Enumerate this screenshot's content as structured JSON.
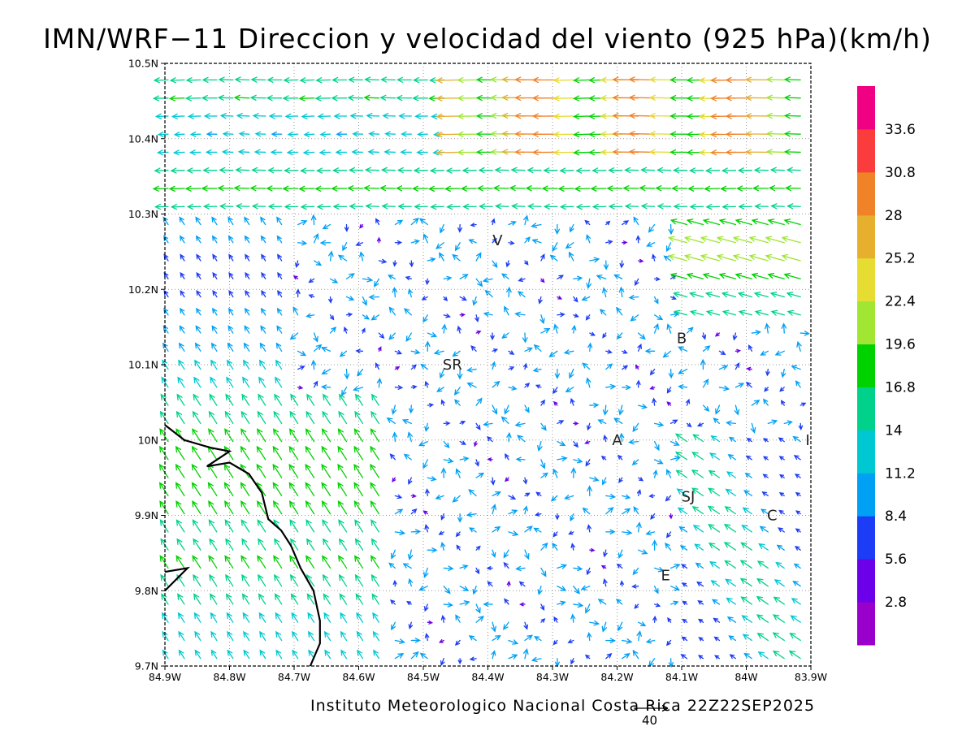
{
  "title": "IMN/WRF−11 Direccion y velocidad del viento (925 hPa)(km/h)",
  "footer": "Instituto Meteorologico Nacional Costa Rica 22Z22SEP2025",
  "reference_vector": {
    "value": 40,
    "label": "40"
  },
  "map": {
    "lon_range": [
      -84.9,
      -83.9
    ],
    "lat_range": [
      9.7,
      10.5
    ],
    "grid": "dotted",
    "x_ticks": [
      {
        "lon": -84.9,
        "label": "84.9W"
      },
      {
        "lon": -84.8,
        "label": "84.8W"
      },
      {
        "lon": -84.7,
        "label": "84.7W"
      },
      {
        "lon": -84.6,
        "label": "84.6W"
      },
      {
        "lon": -84.5,
        "label": "84.5W"
      },
      {
        "lon": -84.4,
        "label": "84.4W"
      },
      {
        "lon": -84.3,
        "label": "84.3W"
      },
      {
        "lon": -84.2,
        "label": "84.2W"
      },
      {
        "lon": -84.1,
        "label": "84.1W"
      },
      {
        "lon": -84.0,
        "label": "84W"
      },
      {
        "lon": -83.9,
        "label": "83.9W"
      }
    ],
    "y_ticks": [
      {
        "lat": 10.5,
        "label": "10.5N"
      },
      {
        "lat": 10.4,
        "label": "10.4N"
      },
      {
        "lat": 10.3,
        "label": "10.3N"
      },
      {
        "lat": 10.2,
        "label": "10.2N"
      },
      {
        "lat": 10.1,
        "label": "10.1N"
      },
      {
        "lat": 10.0,
        "label": "10N"
      },
      {
        "lat": 9.9,
        "label": "9.9N"
      },
      {
        "lat": 9.8,
        "label": "9.8N"
      },
      {
        "lat": 9.7,
        "label": "9.7N"
      }
    ],
    "places": [
      {
        "label": "V",
        "lon": -84.385,
        "lat": 10.265
      },
      {
        "label": "SR",
        "lon": -84.455,
        "lat": 10.1
      },
      {
        "label": "B",
        "lon": -84.1,
        "lat": 10.135
      },
      {
        "label": "A",
        "lon": -84.2,
        "lat": 10.0
      },
      {
        "label": "SJ",
        "lon": -84.09,
        "lat": 9.925
      },
      {
        "label": "C",
        "lon": -83.96,
        "lat": 9.9
      },
      {
        "label": "E",
        "lon": -84.125,
        "lat": 9.82
      },
      {
        "label": "I",
        "lon": -83.905,
        "lat": 10.0
      }
    ],
    "coastline": [
      [
        -84.9,
        10.02
      ],
      [
        -84.87,
        10.0
      ],
      [
        -84.83,
        9.99
      ],
      [
        -84.8,
        9.985
      ],
      [
        -84.835,
        9.965
      ],
      [
        -84.8,
        9.97
      ],
      [
        -84.77,
        9.955
      ],
      [
        -84.75,
        9.93
      ],
      [
        -84.74,
        9.895
      ],
      [
        -84.72,
        9.88
      ],
      [
        -84.705,
        9.86
      ],
      [
        -84.69,
        9.83
      ],
      [
        -84.67,
        9.8
      ],
      [
        -84.66,
        9.76
      ],
      [
        -84.66,
        9.73
      ],
      [
        -84.675,
        9.7
      ]
    ],
    "peninsula": [
      [
        -84.9,
        9.825
      ],
      [
        -84.865,
        9.83
      ],
      [
        -84.9,
        9.8
      ]
    ]
  },
  "colorbar": {
    "colors": [
      "#9a00cc",
      "#6c00e8",
      "#1c3cf5",
      "#00a0f5",
      "#00c8d2",
      "#00d28c",
      "#00d200",
      "#a0e632",
      "#e6dc32",
      "#e6af2d",
      "#f08228",
      "#fa3c3c",
      "#f00082"
    ],
    "labels": [
      "2.8",
      "5.6",
      "8.4",
      "11.2",
      "14",
      "16.8",
      "19.6",
      "22.4",
      "25.2",
      "28",
      "30.8",
      "33.6"
    ]
  }
}
